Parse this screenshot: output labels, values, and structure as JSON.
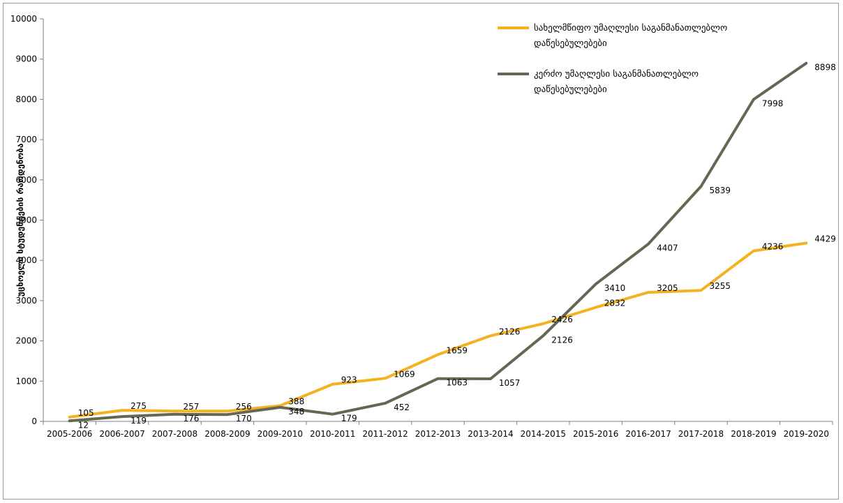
{
  "chart_data": {
    "type": "line",
    "title": "",
    "xlabel": "",
    "ylabel": "უცხოელი სტუდენტების რაოდენობა",
    "ylim": [
      0,
      10000
    ],
    "yticks": [
      0,
      1000,
      2000,
      3000,
      4000,
      5000,
      6000,
      7000,
      8000,
      9000,
      10000
    ],
    "grid": false,
    "legend_position": "top-right",
    "categories": [
      "2005-2006",
      "2006-2007",
      "2007-2008",
      "2008-2009",
      "2009-2010",
      "2010-2011",
      "2011-2012",
      "2012-2013",
      "2013-2014",
      "2014-2015",
      "2015-2016",
      "2016-2017",
      "2017-2018",
      "2018-2019",
      "2019-2020"
    ],
    "series": [
      {
        "name": "სახელმწიფო უმაღლესი საგანმანათლებლო დაწესებულებები",
        "legend_lines": [
          "სახელმწიფო უმაღლესი საგანმანათლებლო",
          "დაწესებულებები"
        ],
        "color": "#f4b223",
        "values": [
          105,
          275,
          257,
          256,
          388,
          923,
          1069,
          1659,
          2126,
          2426,
          2832,
          3205,
          3255,
          4236,
          4429
        ],
        "labels": [
          "105",
          "275",
          "257",
          "256",
          "388",
          "923",
          "1069",
          "1659",
          "2126",
          "2426",
          "2832",
          "3205",
          "3255",
          "4236",
          "4429"
        ]
      },
      {
        "name": "კერძო უმაღლესი საგანმანათლებლო დაწესებულებები",
        "legend_lines": [
          "კერძო უმაღლესი საგანმანათლებლო",
          "დაწესებულებები"
        ],
        "color": "#646852",
        "values": [
          12,
          119,
          176,
          170,
          348,
          179,
          452,
          1063,
          1057,
          2126,
          3410,
          4407,
          5839,
          7998,
          8898
        ],
        "labels": [
          "12",
          "119",
          "176",
          "170",
          "348",
          "179",
          "452",
          "1063",
          "1057",
          "2126",
          "3410",
          "4407",
          "5839",
          "7998",
          "8898"
        ]
      }
    ]
  }
}
